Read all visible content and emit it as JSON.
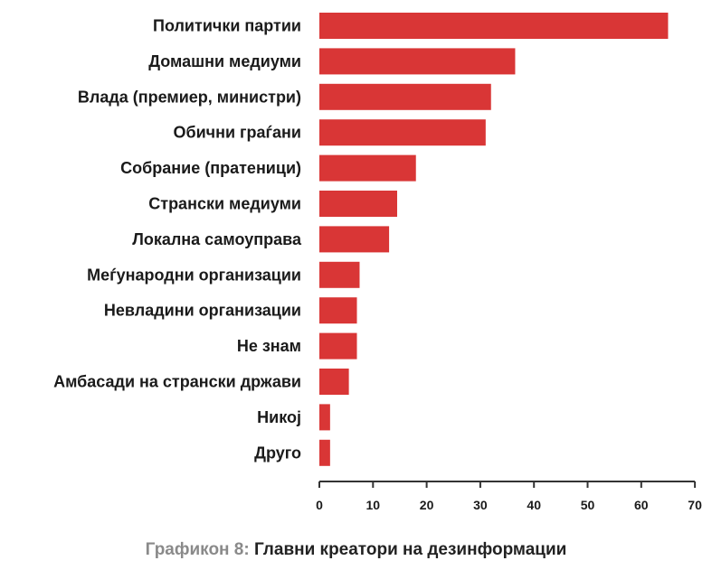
{
  "chart_data": {
    "type": "bar",
    "orientation": "horizontal",
    "categories": [
      "Политички партии",
      "Домашни медиуми",
      "Влада (премиер, министри)",
      "Обични граѓани",
      "Собрание (пратеници)",
      "Странски медиуми",
      "Локална самоуправа",
      "Меѓународни организации",
      "Невладини организации",
      "Не знам",
      "Амбасади на странски држави",
      "Никој",
      "Друго"
    ],
    "values": [
      65,
      36.5,
      32,
      31,
      18,
      14.5,
      13,
      7.5,
      7,
      7,
      5.5,
      2,
      2
    ],
    "xlim": [
      0,
      70
    ],
    "xticks": [
      "0",
      "10",
      "20",
      "30",
      "40",
      "50",
      "60",
      "70"
    ],
    "xlabel": "",
    "ylabel": "",
    "grid": false,
    "bar_color": "#d93636",
    "axis_color": "#333333",
    "caption_prefix": "Графикон 8:",
    "caption_title": "Главни креатори на дезинформации"
  }
}
